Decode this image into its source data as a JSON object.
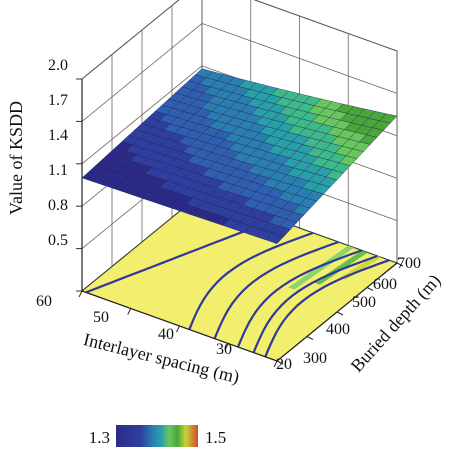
{
  "chart_data": {
    "type": "surface3d",
    "zlabel": "Value of KSDD",
    "xlabel": "Interlayer spacing (m)",
    "ylabel": "Buried depth (m)",
    "z_ticks": [
      "0.5",
      "0.8",
      "1.1",
      "1.4",
      "1.7",
      "2.0"
    ],
    "x_ticks": [
      "60",
      "50",
      "40",
      "30",
      "20"
    ],
    "y_ticks": [
      "300",
      "400",
      "500",
      "600",
      "700"
    ],
    "zlim": [
      0.5,
      2.0
    ],
    "xlim": [
      60,
      20
    ],
    "ylim": [
      300,
      700
    ],
    "surface_corners": [
      {
        "x": 60,
        "y": 300,
        "z": 1.3
      },
      {
        "x": 20,
        "y": 300,
        "z": 1.33
      },
      {
        "x": 60,
        "y": 700,
        "z": 1.38
      },
      {
        "x": 20,
        "y": 700,
        "z": 1.5
      }
    ],
    "colorbar": {
      "min_label": "1.3",
      "max_label": "1.5",
      "colors": [
        "#2b2a88",
        "#2f3f9f",
        "#2f5fae",
        "#2a7fb0",
        "#28a0a8",
        "#3dba8a",
        "#69c65c",
        "#4aa63a",
        "#c8d23a",
        "#d9a030",
        "#d24a2a"
      ]
    },
    "floor_color": "#f2ee6e",
    "contour_color": "#33379a",
    "grid": true
  }
}
